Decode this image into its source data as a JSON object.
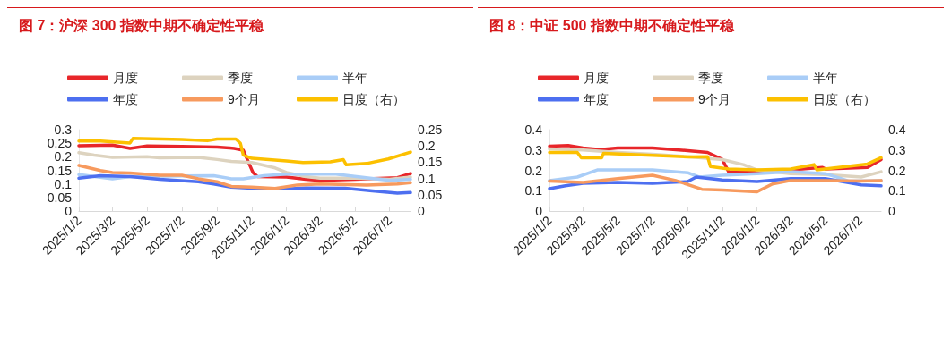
{
  "chart_data": [
    {
      "type": "line",
      "title": "图 7：沪深 300 指数中期不确定性平稳",
      "legend": "top",
      "grid": false,
      "xlim": [
        "2025-01-02",
        "2026-08-08"
      ],
      "xticks": [
        {
          "value": "2025-01-02",
          "label": "2025/1/2"
        },
        {
          "value": "2025-03-02",
          "label": "2025/3/2"
        },
        {
          "value": "2025-05-02",
          "label": "2025/5/2"
        },
        {
          "value": "2025-07-02",
          "label": "2025/7/2"
        },
        {
          "value": "2025-09-02",
          "label": "2025/9/2"
        },
        {
          "value": "2025-11-02",
          "label": "2025/11/2"
        },
        {
          "value": "2026-01-02",
          "label": "2026/1/2"
        },
        {
          "value": "2026-03-02",
          "label": "2026/3/2"
        },
        {
          "value": "2026-05-02",
          "label": "2026/5/2"
        },
        {
          "value": "2026-07-02",
          "label": "2026/7/2"
        }
      ],
      "ylim": [
        0,
        0.3
      ],
      "yticks": [
        0,
        0.05,
        0.1,
        0.15,
        0.2,
        0.25,
        0.3
      ],
      "y2lim": [
        0,
        0.25
      ],
      "y2ticks": [
        0,
        0.05,
        0.1,
        0.15,
        0.2,
        0.25
      ],
      "series": [
        {
          "name": "月度",
          "color": "#e8262a",
          "x": [
            "2025-01-02",
            "2025-03-02",
            "2025-04-02",
            "2025-05-02",
            "2025-07-02",
            "2025-09-02",
            "2025-10-02",
            "2025-10-18",
            "2025-11-04",
            "2025-11-12",
            "2026-01-02",
            "2026-02-05",
            "2026-03-02",
            "2026-05-02",
            "2026-07-16",
            "2026-08-08"
          ],
          "values": [
            0.241,
            0.243,
            0.231,
            0.24,
            0.238,
            0.236,
            0.231,
            0.224,
            0.142,
            0.127,
            0.125,
            0.117,
            0.113,
            0.117,
            0.123,
            0.138
          ]
        },
        {
          "name": "季度",
          "color": "#ddd3bf",
          "x": [
            "2025-01-02",
            "2025-01-29",
            "2025-03-02",
            "2025-05-02",
            "2025-05-24",
            "2025-07-31",
            "2025-09-02",
            "2025-09-27",
            "2025-11-02",
            "2025-12-13",
            "2026-01-02",
            "2026-02-05",
            "2026-03-02",
            "2026-05-02",
            "2026-07-02",
            "2026-08-08"
          ],
          "values": [
            0.215,
            0.206,
            0.198,
            0.2,
            0.196,
            0.198,
            0.19,
            0.183,
            0.179,
            0.159,
            0.142,
            0.127,
            0.121,
            0.121,
            0.117,
            0.125
          ]
        },
        {
          "name": "半年",
          "color": "#a9cdf7",
          "x": [
            "2025-01-02",
            "2025-03-02",
            "2025-04-02",
            "2025-07-02",
            "2025-08-27",
            "2025-09-27",
            "2025-10-18",
            "2025-11-23",
            "2026-01-02",
            "2026-03-30",
            "2026-05-02",
            "2026-07-02",
            "2026-08-08"
          ],
          "values": [
            0.134,
            0.119,
            0.127,
            0.129,
            0.13,
            0.119,
            0.119,
            0.13,
            0.136,
            0.136,
            0.128,
            0.113,
            0.117
          ]
        },
        {
          "name": "年度",
          "color": "#4d6ff0",
          "x": [
            "2025-01-02",
            "2025-02-09",
            "2025-04-02",
            "2025-05-24",
            "2025-07-31",
            "2025-08-27",
            "2025-09-27",
            "2025-11-02",
            "2026-01-02",
            "2026-02-05",
            "2026-04-15",
            "2026-06-02",
            "2026-07-16",
            "2026-08-08"
          ],
          "values": [
            0.121,
            0.13,
            0.127,
            0.117,
            0.108,
            0.1,
            0.088,
            0.084,
            0.082,
            0.085,
            0.084,
            0.074,
            0.066,
            0.068
          ]
        },
        {
          "name": "9个月",
          "color": "#f79a5e",
          "x": [
            "2025-01-02",
            "2025-02-09",
            "2025-03-02",
            "2025-04-02",
            "2025-05-24",
            "2025-07-02",
            "2025-07-31",
            "2025-09-02",
            "2025-09-27",
            "2025-11-02",
            "2025-12-13",
            "2026-01-21",
            "2026-03-02",
            "2026-05-23",
            "2026-07-16",
            "2026-08-08"
          ],
          "values": [
            0.168,
            0.149,
            0.142,
            0.14,
            0.132,
            0.132,
            0.119,
            0.108,
            0.091,
            0.088,
            0.083,
            0.096,
            0.1,
            0.096,
            0.1,
            0.105
          ]
        },
        {
          "name": "日度（右）",
          "color": "#fcc000",
          "axis": "y2",
          "x": [
            "2025-01-02",
            "2025-02-09",
            "2025-04-02",
            "2025-04-07",
            "2025-07-02",
            "2025-08-16",
            "2025-09-02",
            "2025-10-05",
            "2025-10-13",
            "2025-10-18",
            "2025-11-02",
            "2026-01-02",
            "2026-01-31",
            "2026-03-20",
            "2026-04-12",
            "2026-04-17",
            "2026-05-23",
            "2026-06-30",
            "2026-08-08"
          ],
          "values": [
            0.215,
            0.215,
            0.209,
            0.223,
            0.22,
            0.216,
            0.221,
            0.221,
            0.208,
            0.172,
            0.162,
            0.154,
            0.149,
            0.151,
            0.158,
            0.142,
            0.146,
            0.16,
            0.181
          ]
        }
      ]
    },
    {
      "type": "line",
      "title": "图 8：中证 500 指数中期不确定性平稳",
      "legend": "top",
      "grid": false,
      "xlim": [
        "2025-01-02",
        "2026-08-08"
      ],
      "xticks": [
        {
          "value": "2025-01-02",
          "label": "2025/1/2"
        },
        {
          "value": "2025-03-02",
          "label": "2025/3/2"
        },
        {
          "value": "2025-05-02",
          "label": "2025/5/2"
        },
        {
          "value": "2025-07-02",
          "label": "2025/7/2"
        },
        {
          "value": "2025-09-02",
          "label": "2025/9/2"
        },
        {
          "value": "2025-11-02",
          "label": "2025/11/2"
        },
        {
          "value": "2026-01-02",
          "label": "2026/1/2"
        },
        {
          "value": "2026-03-02",
          "label": "2026/3/2"
        },
        {
          "value": "2026-05-02",
          "label": "2026/5/2"
        },
        {
          "value": "2026-07-02",
          "label": "2026/7/2"
        }
      ],
      "ylim": [
        0,
        0.4
      ],
      "yticks": [
        0,
        0.1,
        0.2,
        0.3,
        0.4
      ],
      "y2lim": [
        0,
        0.4
      ],
      "y2ticks": [
        0,
        0.1,
        0.2,
        0.3,
        0.4
      ],
      "series": [
        {
          "name": "月度",
          "color": "#e8262a",
          "x": [
            "2025-01-02",
            "2025-02-04",
            "2025-03-02",
            "2025-04-01",
            "2025-05-02",
            "2025-07-02",
            "2025-09-02",
            "2025-10-07",
            "2025-11-02",
            "2025-11-13",
            "2026-01-02",
            "2026-03-02",
            "2026-04-27",
            "2026-05-02",
            "2026-07-15",
            "2026-08-08"
          ],
          "values": [
            0.319,
            0.322,
            0.31,
            0.302,
            0.31,
            0.31,
            0.297,
            0.288,
            0.253,
            0.193,
            0.19,
            0.202,
            0.214,
            0.207,
            0.214,
            0.253
          ]
        },
        {
          "name": "季度",
          "color": "#ddd3bf",
          "x": [
            "2025-01-02",
            "2025-03-02",
            "2025-05-02",
            "2025-07-02",
            "2025-09-02",
            "2025-11-02",
            "2025-12-09",
            "2026-01-02",
            "2026-03-02",
            "2026-05-02",
            "2026-07-04",
            "2026-08-08"
          ],
          "values": [
            0.305,
            0.3,
            0.288,
            0.279,
            0.267,
            0.253,
            0.228,
            0.202,
            0.184,
            0.179,
            0.167,
            0.193
          ]
        },
        {
          "name": "半年",
          "color": "#a9cdf7",
          "x": [
            "2025-01-02",
            "2025-02-20",
            "2025-03-27",
            "2025-07-02",
            "2025-09-02",
            "2025-09-22",
            "2025-11-02",
            "2026-01-02",
            "2026-03-02",
            "2026-05-02",
            "2026-06-13",
            "2026-08-08"
          ],
          "values": [
            0.15,
            0.167,
            0.202,
            0.202,
            0.188,
            0.167,
            0.176,
            0.184,
            0.193,
            0.184,
            0.147,
            0.15
          ]
        },
        {
          "name": "年度",
          "color": "#4d6ff0",
          "x": [
            "2025-01-02",
            "2025-01-30",
            "2025-03-02",
            "2025-05-02",
            "2025-07-02",
            "2025-09-02",
            "2025-09-17",
            "2025-11-02",
            "2026-01-02",
            "2026-03-02",
            "2026-05-02",
            "2026-07-04",
            "2026-08-08"
          ],
          "values": [
            0.11,
            0.124,
            0.136,
            0.141,
            0.136,
            0.145,
            0.167,
            0.153,
            0.145,
            0.159,
            0.159,
            0.129,
            0.124
          ]
        },
        {
          "name": "9个月",
          "color": "#f79a5e",
          "x": [
            "2025-01-02",
            "2025-03-02",
            "2025-05-02",
            "2025-07-02",
            "2025-08-12",
            "2025-09-27",
            "2025-11-02",
            "2026-01-02",
            "2026-01-29",
            "2026-03-02",
            "2026-05-02",
            "2026-07-04",
            "2026-08-08"
          ],
          "values": [
            0.147,
            0.141,
            0.159,
            0.176,
            0.15,
            0.107,
            0.103,
            0.095,
            0.133,
            0.15,
            0.15,
            0.147,
            0.15
          ]
        },
        {
          "name": "日度（右）",
          "color": "#fcc000",
          "axis": "y2",
          "x": [
            "2025-01-02",
            "2025-02-20",
            "2025-02-27",
            "2025-04-04",
            "2025-04-07",
            "2025-07-02",
            "2025-09-02",
            "2025-10-07",
            "2025-10-12",
            "2025-11-13",
            "2026-01-02",
            "2026-03-02",
            "2026-04-12",
            "2026-04-17",
            "2026-06-08",
            "2026-07-15",
            "2026-08-08"
          ],
          "values": [
            0.288,
            0.288,
            0.262,
            0.262,
            0.283,
            0.274,
            0.266,
            0.267,
            0.219,
            0.207,
            0.202,
            0.207,
            0.228,
            0.202,
            0.219,
            0.231,
            0.262
          ]
        }
      ]
    }
  ]
}
